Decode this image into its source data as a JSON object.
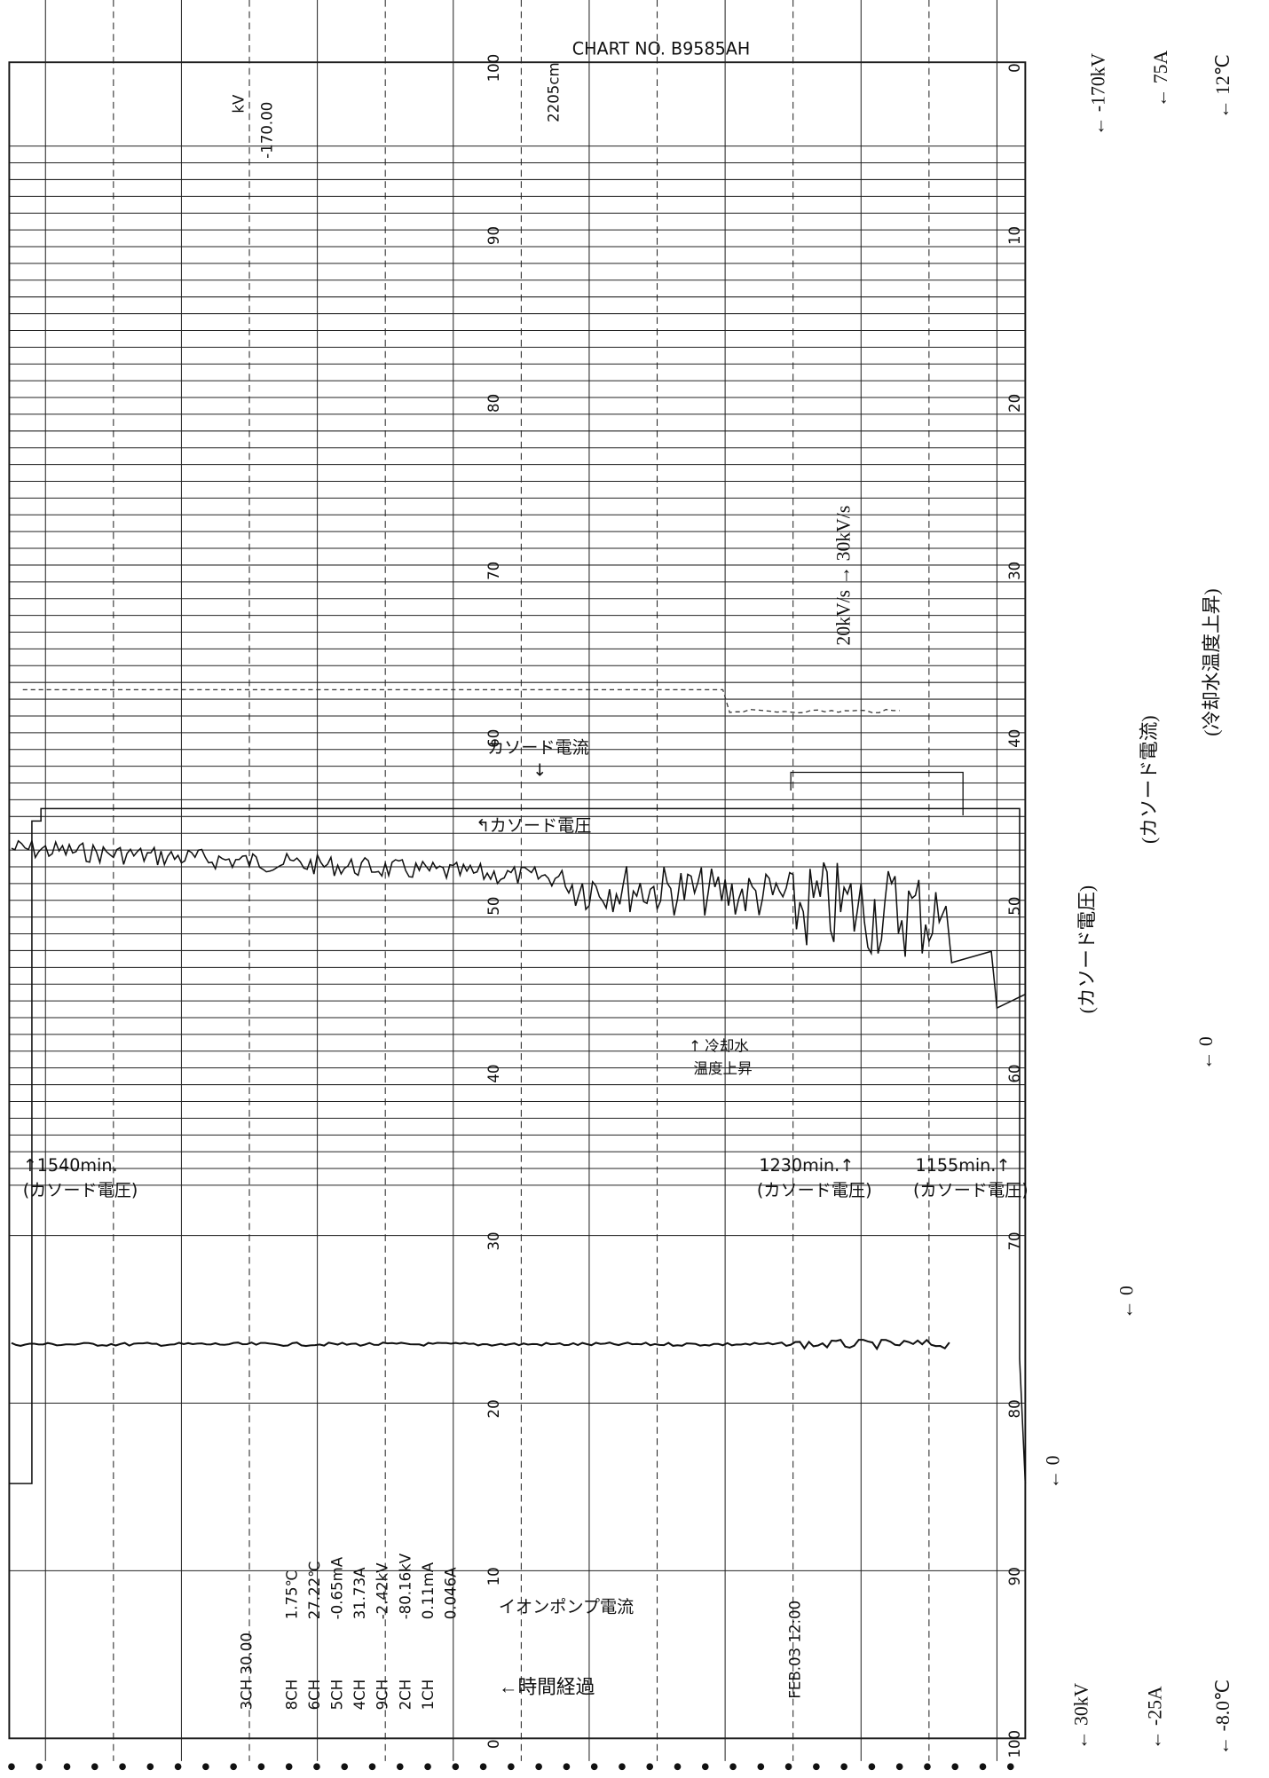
{
  "header": {
    "length": "2205cm",
    "chart_no": "CHART NO. B9585AH"
  },
  "left_scale": [
    "100",
    "90",
    "80",
    "70",
    "60",
    "50",
    "40",
    "30",
    "20",
    "10",
    "0"
  ],
  "right_scale": [
    "0",
    "10",
    "20",
    "30",
    "40",
    "50",
    "60",
    "70",
    "80",
    "90",
    "100"
  ],
  "readout": {
    "unit": "kV",
    "value": "-170.00"
  },
  "annotations": {
    "cathode_current": "カソード電流",
    "cathode_voltage": "カソード電圧",
    "cooling": "冷却水",
    "cooling2": "温度上昇",
    "mark1": "↑1540min.",
    "mark1_sub": "(カソード電圧)",
    "mark2": "1230min.↑",
    "mark2_sub": "(カソード電圧)",
    "mark3": "1155min.↑",
    "mark3_sub": "(カソード電圧)",
    "ion_pump": "イオンポンプ電流",
    "elapsed": "←時間経過",
    "rate": "20kV/s → 30kV/s",
    "date": "FEB.03 12:00"
  },
  "right_labels": {
    "top_voltage": "← -170kV",
    "top_current": "← 75A",
    "top_temp": "← 12℃",
    "voltage": "(カソード電圧)",
    "current": "(カソード電流)",
    "temp": "(冷却水温度上昇)",
    "zero1": "← 0",
    "zero2": "← 0",
    "zero3": "← 0",
    "bottom_voltage": "← 30kV",
    "bottom_current": "← -25A",
    "bottom_temp": "← -8.0℃"
  },
  "readings": [
    "1.75℃",
    "27.22℃",
    "-0.65mA",
    "31.73A",
    "-2.42kV",
    "-80.16kV",
    "0.11mA",
    "0.046A"
  ],
  "channels": [
    "3CH 30.00",
    "8CH",
    "6CH",
    "5CH",
    "4CH",
    "9CH",
    "2CH",
    "1CH"
  ]
}
